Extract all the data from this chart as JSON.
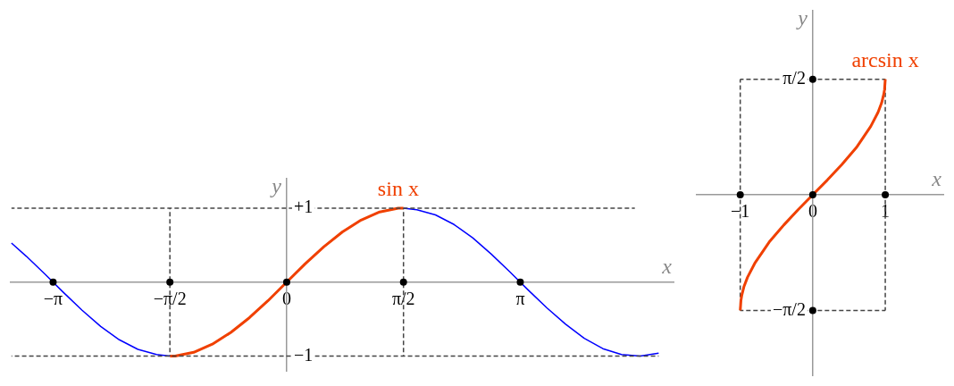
{
  "chart_data": [
    {
      "type": "line",
      "xlabel": "x",
      "ylabel": "y",
      "xlim": [
        -3.71,
        5.2
      ],
      "ylim": [
        -1.2,
        1.4
      ],
      "xticks": [
        {
          "value": -3.14,
          "label": "−π"
        },
        {
          "value": -1.57,
          "label": "−π/2"
        },
        0,
        {
          "value": 1.57,
          "label": "π/2"
        },
        {
          "value": 3.14,
          "label": "π"
        }
      ],
      "yticks": [
        {
          "value": 1,
          "label": "+1"
        },
        {
          "value": -1,
          "label": "−1"
        }
      ],
      "grid": false,
      "legend": false,
      "series": [
        {
          "color": "#0000ff",
          "marker": "none",
          "line_style": "solid",
          "x": [
            -3.7,
            -3.5,
            -3.25,
            -3,
            -2.75,
            -2.5,
            -2.25,
            -2,
            -1.75,
            -1.57,
            -1.5,
            -1.25,
            -1,
            -0.75,
            -0.5,
            -0.25,
            0,
            0.25,
            0.5,
            0.75,
            1,
            1.25,
            1.5,
            1.57,
            1.75,
            2,
            2.25,
            2.5,
            2.75,
            3,
            3.25,
            3.5,
            3.75,
            4,
            4.25,
            4.5,
            4.75,
            5
          ],
          "values": [
            0.53,
            0.35,
            0.11,
            -0.14,
            -0.38,
            -0.6,
            -0.78,
            -0.91,
            -0.98,
            -1,
            null,
            null,
            null,
            null,
            null,
            null,
            null,
            null,
            null,
            null,
            null,
            null,
            null,
            1,
            0.98,
            0.91,
            0.78,
            0.6,
            0.38,
            0.14,
            -0.11,
            -0.35,
            -0.57,
            -0.76,
            -0.9,
            -0.98,
            -1,
            -0.96
          ]
        },
        {
          "name": "sin x",
          "color": "#f04000",
          "marker": "none",
          "line_style": "solid",
          "x": [
            -1.57,
            -1.5,
            -1.25,
            -1,
            -0.75,
            -0.5,
            -0.25,
            0,
            0.25,
            0.5,
            0.75,
            1,
            1.25,
            1.5,
            1.57
          ],
          "values": [
            -1,
            -1,
            -0.95,
            -0.84,
            -0.68,
            -0.48,
            -0.25,
            0,
            0.25,
            0.48,
            0.68,
            0.84,
            0.95,
            1,
            1
          ]
        },
        {
          "color": "#444444",
          "marker": "none",
          "line_style": "dashed",
          "x": [
            -3.7,
            4.68
          ],
          "values": [
            1,
            1
          ]
        },
        {
          "color": "#444444",
          "marker": "none",
          "line_style": "dashed",
          "x": [
            -3.7,
            5.0
          ],
          "values": [
            -1,
            -1
          ]
        },
        {
          "color": "#444444",
          "marker": "none",
          "line_style": "dashed",
          "x": [
            -1.57,
            -1.57
          ],
          "values": [
            -1,
            1
          ]
        },
        {
          "color": "#444444",
          "marker": "none",
          "line_style": "dashed",
          "x": [
            1.57,
            1.57
          ],
          "values": [
            -1,
            1
          ]
        },
        {
          "type": "scatter",
          "color": "#000000",
          "marker": "circle",
          "x": [
            -3.14,
            -1.57,
            0,
            1.57,
            3.14
          ],
          "values": [
            0,
            0,
            0,
            0,
            0
          ]
        }
      ]
    },
    {
      "type": "line",
      "xlabel": "x",
      "ylabel": "y",
      "xlim": [
        -1.6,
        1.8
      ],
      "ylim": [
        -2.45,
        2.5
      ],
      "xticks": [
        -1,
        0,
        1
      ],
      "yticks": [
        {
          "value": 1.57,
          "label": "π/2"
        },
        {
          "value": -1.57,
          "label": "−π/2"
        }
      ],
      "grid": false,
      "legend": false,
      "series": [
        {
          "color": "#444444",
          "marker": "none",
          "line_style": "dashed",
          "x": [
            -1,
            -1
          ],
          "values": [
            -1.57,
            1.57
          ]
        },
        {
          "color": "#444444",
          "marker": "none",
          "line_style": "dashed",
          "x": [
            -1,
            1
          ],
          "values": [
            1.57,
            1.57
          ]
        },
        {
          "color": "#444444",
          "marker": "none",
          "line_style": "dashed",
          "x": [
            1,
            1
          ],
          "values": [
            1.57,
            -1.57
          ]
        },
        {
          "color": "#444444",
          "marker": "none",
          "line_style": "dashed",
          "x": [
            1,
            -1
          ],
          "values": [
            -1.57,
            -1.57
          ]
        },
        {
          "name": "arcsin x",
          "color": "#f04000",
          "marker": "none",
          "line_style": "solid",
          "x": [
            -1,
            -0.99,
            -0.98,
            -0.95,
            -0.9,
            -0.8,
            -0.6,
            -0.4,
            -0.2,
            0,
            0.2,
            0.4,
            0.6,
            0.8,
            0.9,
            0.95,
            0.98,
            0.99,
            1
          ],
          "values": [
            -1.57,
            -1.43,
            -1.37,
            -1.25,
            -1.12,
            -0.93,
            -0.64,
            -0.41,
            -0.2,
            0,
            0.2,
            0.41,
            0.64,
            0.93,
            1.12,
            1.25,
            1.37,
            1.43,
            1.57
          ]
        },
        {
          "type": "scatter",
          "color": "#000000",
          "marker": "circle",
          "x": [
            -1,
            0,
            1,
            0,
            0
          ],
          "values": [
            0,
            0,
            0,
            1.57,
            -1.57
          ]
        }
      ]
    }
  ]
}
